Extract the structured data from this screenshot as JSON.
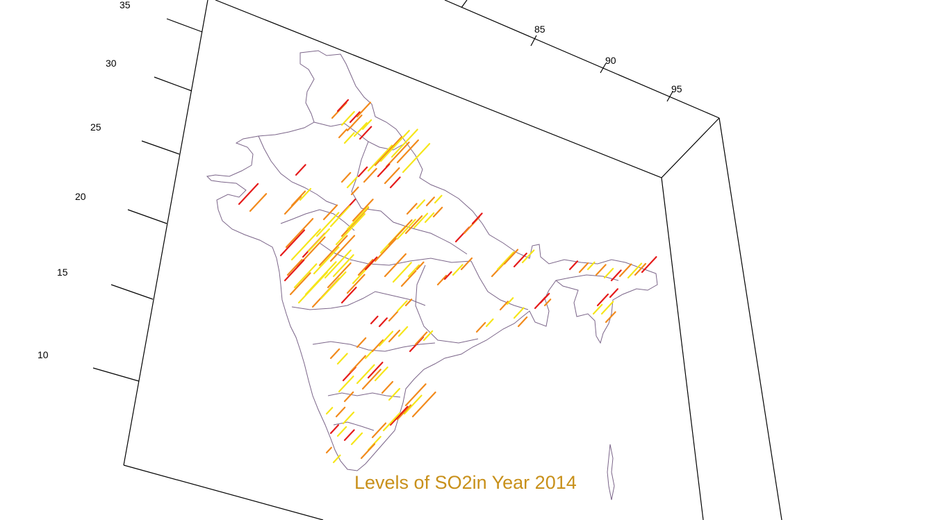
{
  "title": "Levels of SO2in Year 2014",
  "colors": {
    "title": "#c8901a",
    "boundary": "#7a6488",
    "frame": "#000000",
    "so2_levels": [
      "#e51b1b",
      "#f28a1c",
      "#f6e61a"
    ]
  },
  "axes": {
    "latitude_ticks": [
      "35",
      "30",
      "25",
      "20",
      "15",
      "10"
    ],
    "longitude_ticks": [
      "85",
      "90",
      "95"
    ]
  },
  "chart_data": {
    "type": "3d-spike-map",
    "title": "Levels of SO2in Year 2014",
    "region": "India",
    "x_label": "",
    "y_label": "",
    "latitude_ticks": [
      35,
      30,
      25,
      20,
      15,
      10
    ],
    "longitude_ticks": [
      85,
      90,
      95
    ],
    "bar_color_scale": [
      "red",
      "orange",
      "yellow"
    ]
  }
}
